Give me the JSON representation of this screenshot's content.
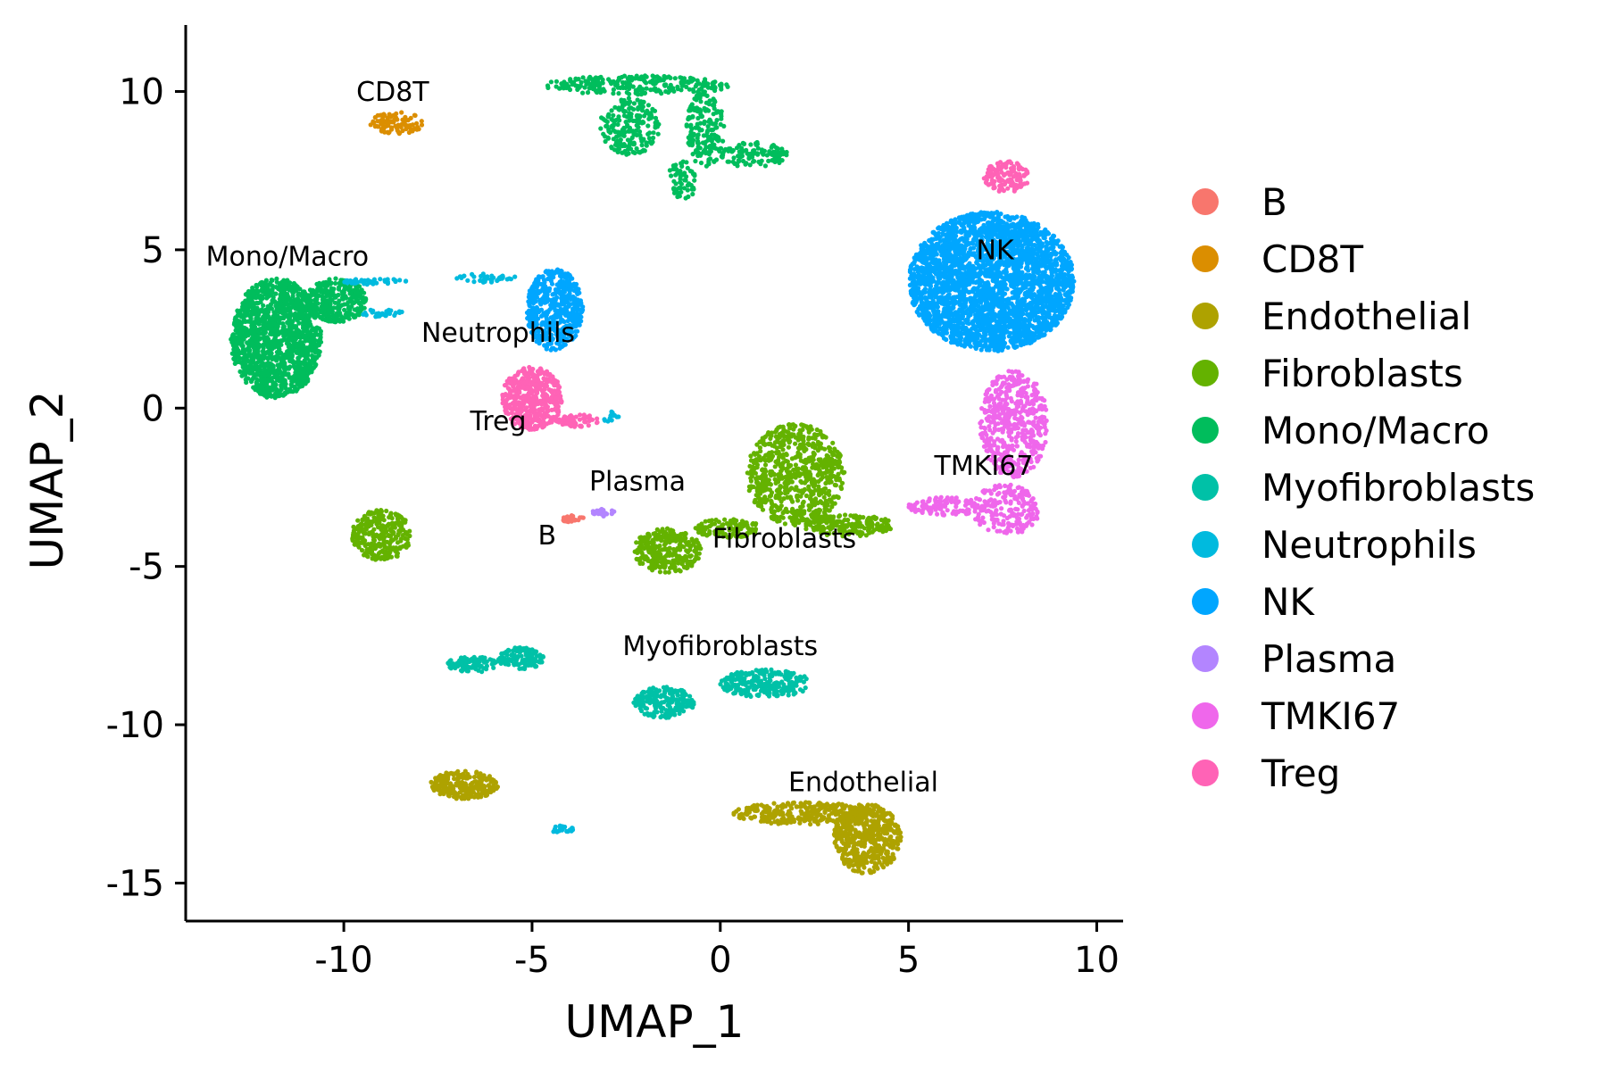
{
  "chart_data": {
    "type": "scatter",
    "xlabel": "UMAP_1",
    "ylabel": "UMAP_2",
    "xlim": [
      -14.2,
      10.7
    ],
    "ylim": [
      -16.2,
      12.1
    ],
    "x_ticks": [
      -10,
      -5,
      0,
      5,
      10
    ],
    "y_ticks": [
      10,
      5,
      0,
      -5,
      -10,
      -15
    ],
    "x_tick_labels": [
      "-10",
      "-5",
      "0",
      "5",
      "10"
    ],
    "y_tick_labels": [
      "10",
      "5",
      "0",
      "-5",
      "-10",
      "-15"
    ],
    "grid": false,
    "legend_position": "right",
    "legend": [
      {
        "name": "B",
        "color": "#F8766D"
      },
      {
        "name": "CD8T",
        "color": "#DB8E00"
      },
      {
        "name": "Endothelial",
        "color": "#AEA200"
      },
      {
        "name": "Fibroblasts",
        "color": "#64B200"
      },
      {
        "name": "Mono/Macro",
        "color": "#00BD5C"
      },
      {
        "name": "Myofibroblasts",
        "color": "#00C1A7"
      },
      {
        "name": "Neutrophils",
        "color": "#00BADE"
      },
      {
        "name": "NK",
        "color": "#00A6FF"
      },
      {
        "name": "Plasma",
        "color": "#B385FF"
      },
      {
        "name": "TMKI67",
        "color": "#EF67EB"
      },
      {
        "name": "Treg",
        "color": "#FF63B6"
      }
    ],
    "clusters": [
      {
        "name": "B",
        "label": "B",
        "label_x": -4.6,
        "label_y": -4.3,
        "regions": [
          {
            "cx": -3.9,
            "cy": -3.5,
            "rx": 0.3,
            "ry": 0.12,
            "n": 30
          }
        ]
      },
      {
        "name": "CD8T",
        "label": "CD8T",
        "label_x": -8.7,
        "label_y": 9.7,
        "regions": [
          {
            "cx": -8.6,
            "cy": 9.0,
            "rx": 0.7,
            "ry": 0.35,
            "n": 90
          }
        ]
      },
      {
        "name": "Endothelial",
        "label": "Endothelial",
        "label_x": 3.8,
        "label_y": -12.1,
        "regions": [
          {
            "cx": 3.9,
            "cy": -13.6,
            "rx": 0.9,
            "ry": 1.1,
            "n": 500
          },
          {
            "cx": 2.2,
            "cy": -12.8,
            "rx": 1.9,
            "ry": 0.35,
            "n": 300
          },
          {
            "cx": -6.8,
            "cy": -11.9,
            "rx": 0.9,
            "ry": 0.45,
            "n": 250
          }
        ]
      },
      {
        "name": "Fibroblasts",
        "label": "Fibroblasts",
        "label_x": 1.7,
        "label_y": -4.4,
        "regions": [
          {
            "cx": 2.0,
            "cy": -2.1,
            "rx": 1.3,
            "ry": 1.6,
            "n": 700
          },
          {
            "cx": -1.4,
            "cy": -4.5,
            "rx": 0.9,
            "ry": 0.7,
            "n": 300
          },
          {
            "cx": 3.4,
            "cy": -3.7,
            "rx": 1.2,
            "ry": 0.35,
            "n": 200
          },
          {
            "cx": -9.0,
            "cy": -4.0,
            "rx": 0.8,
            "ry": 0.8,
            "n": 300
          },
          {
            "cx": 0.2,
            "cy": -3.8,
            "rx": 0.9,
            "ry": 0.3,
            "n": 120
          }
        ]
      },
      {
        "name": "Mono/Macro",
        "label": "Mono/Macro",
        "label_x": -11.5,
        "label_y": 4.5,
        "regions": [
          {
            "cx": -11.8,
            "cy": 2.2,
            "rx": 1.2,
            "ry": 1.9,
            "n": 1400
          },
          {
            "cx": -10.2,
            "cy": 3.4,
            "rx": 0.8,
            "ry": 0.7,
            "n": 300
          },
          {
            "cx": -2.2,
            "cy": 10.2,
            "rx": 2.5,
            "ry": 0.3,
            "n": 250
          },
          {
            "cx": -2.4,
            "cy": 8.9,
            "rx": 0.8,
            "ry": 0.9,
            "n": 200
          },
          {
            "cx": -0.4,
            "cy": 8.8,
            "rx": 0.5,
            "ry": 1.2,
            "n": 180
          },
          {
            "cx": 0.9,
            "cy": 8.0,
            "rx": 0.9,
            "ry": 0.4,
            "n": 100
          },
          {
            "cx": -1.0,
            "cy": 7.2,
            "rx": 0.4,
            "ry": 0.6,
            "n": 60
          }
        ]
      },
      {
        "name": "Myofibroblasts",
        "label": "Myofibroblasts",
        "label_x": 0.0,
        "label_y": -7.8,
        "regions": [
          {
            "cx": -1.5,
            "cy": -9.3,
            "rx": 0.8,
            "ry": 0.5,
            "n": 200
          },
          {
            "cx": 1.2,
            "cy": -8.7,
            "rx": 1.2,
            "ry": 0.45,
            "n": 250
          },
          {
            "cx": -5.3,
            "cy": -7.9,
            "rx": 0.6,
            "ry": 0.35,
            "n": 120
          },
          {
            "cx": -6.6,
            "cy": -8.1,
            "rx": 0.7,
            "ry": 0.25,
            "n": 80
          }
        ]
      },
      {
        "name": "Neutrophils",
        "label": "Neutrophils",
        "label_x": -5.9,
        "label_y": 2.1,
        "regions": [
          {
            "cx": -9.0,
            "cy": 3.0,
            "rx": 0.6,
            "ry": 0.12,
            "n": 30
          },
          {
            "cx": -9.2,
            "cy": 4.0,
            "rx": 0.9,
            "ry": 0.1,
            "n": 40
          },
          {
            "cx": -6.2,
            "cy": 4.1,
            "rx": 0.8,
            "ry": 0.15,
            "n": 40
          },
          {
            "cx": -4.2,
            "cy": -13.3,
            "rx": 0.3,
            "ry": 0.12,
            "n": 25
          },
          {
            "cx": -2.9,
            "cy": -0.3,
            "rx": 0.2,
            "ry": 0.2,
            "n": 15
          }
        ]
      },
      {
        "name": "NK",
        "label": "NK",
        "label_x": 7.3,
        "label_y": 4.7,
        "regions": [
          {
            "cx": 7.2,
            "cy": 4.0,
            "rx": 2.2,
            "ry": 2.2,
            "n": 3000
          },
          {
            "cx": -4.4,
            "cy": 3.1,
            "rx": 0.75,
            "ry": 1.3,
            "n": 500
          }
        ]
      },
      {
        "name": "Plasma",
        "label": "Plasma",
        "label_x": -2.2,
        "label_y": -2.6,
        "regions": [
          {
            "cx": -3.1,
            "cy": -3.3,
            "rx": 0.3,
            "ry": 0.12,
            "n": 25
          }
        ]
      },
      {
        "name": "TMKI67",
        "label": "TMKI67",
        "label_x": 7.0,
        "label_y": -2.1,
        "regions": [
          {
            "cx": 7.8,
            "cy": -0.5,
            "rx": 0.9,
            "ry": 1.7,
            "n": 500
          },
          {
            "cx": 7.6,
            "cy": -3.2,
            "rx": 0.9,
            "ry": 0.8,
            "n": 200
          },
          {
            "cx": 6.0,
            "cy": -3.1,
            "rx": 1.0,
            "ry": 0.3,
            "n": 120
          }
        ]
      },
      {
        "name": "Treg",
        "label": "Treg",
        "label_x": -5.9,
        "label_y": -0.7,
        "regions": [
          {
            "cx": -5.0,
            "cy": 0.3,
            "rx": 0.8,
            "ry": 1.0,
            "n": 450
          },
          {
            "cx": -3.8,
            "cy": -0.4,
            "rx": 0.6,
            "ry": 0.2,
            "n": 60
          },
          {
            "cx": 7.6,
            "cy": 7.3,
            "rx": 0.6,
            "ry": 0.5,
            "n": 130
          }
        ]
      }
    ]
  }
}
